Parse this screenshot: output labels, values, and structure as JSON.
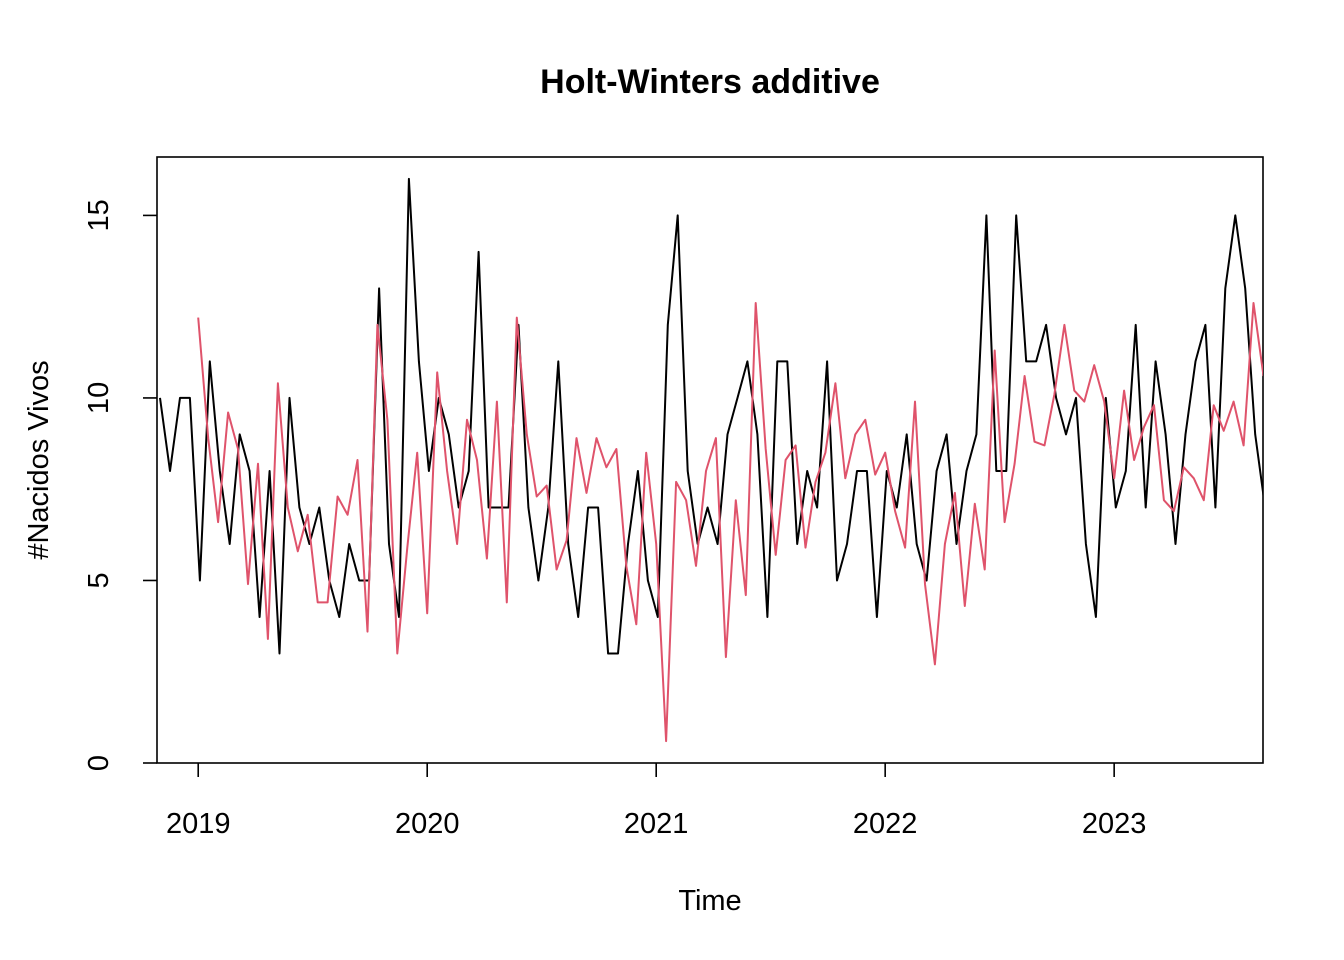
{
  "chart_data": {
    "type": "line",
    "title": "Holt-Winters additive",
    "xlabel": "Time",
    "ylabel": "#Nacidos Vivos",
    "xlim": [
      2018.82,
      2023.65
    ],
    "ylim": [
      0,
      16.6
    ],
    "x_ticks": [
      2019,
      2020,
      2021,
      2022,
      2023
    ],
    "x_tick_labels": [
      "2019",
      "2020",
      "2021",
      "2022",
      "2023"
    ],
    "y_ticks": [
      0,
      5,
      10,
      15
    ],
    "y_tick_labels": [
      "0",
      "5",
      "10",
      "15"
    ],
    "grid": false,
    "legend": "none",
    "series": [
      {
        "color": "#000000",
        "x_start": 2018.8333,
        "x_step": 0.043478,
        "values": [
          10,
          8,
          10,
          10,
          5,
          11,
          8,
          6,
          9,
          8,
          4,
          8,
          3,
          10,
          7,
          6,
          7,
          5,
          4,
          6,
          5,
          5,
          13,
          6,
          4,
          16,
          11,
          8,
          10,
          9,
          7,
          8,
          14,
          7,
          7,
          7,
          12,
          7,
          5,
          7,
          11,
          6,
          4,
          7,
          7,
          3,
          3,
          6,
          8,
          5,
          4,
          12,
          15,
          8,
          6,
          7,
          6,
          9,
          10,
          11,
          9,
          4,
          11,
          11,
          6,
          8,
          7,
          11,
          5,
          6,
          8,
          8,
          4,
          8,
          7,
          9,
          6,
          5,
          8,
          9,
          6,
          8,
          9,
          15,
          8,
          8,
          15,
          11,
          11,
          12,
          10,
          9,
          10,
          6,
          4,
          10,
          7,
          8,
          12,
          7,
          11,
          9,
          6,
          9,
          11,
          12,
          7,
          13,
          15,
          13,
          9,
          7
        ]
      },
      {
        "color": "#DF536B",
        "x_start": 2019.0,
        "x_step": 0.043478,
        "values": [
          12.2,
          8.9,
          6.6,
          9.6,
          8.6,
          4.9,
          8.2,
          3.4,
          10.4,
          7.0,
          5.8,
          6.8,
          4.4,
          4.4,
          7.3,
          6.8,
          8.3,
          3.6,
          12.0,
          9.4,
          3.0,
          5.9,
          8.5,
          4.1,
          10.7,
          8.0,
          6.0,
          9.4,
          8.3,
          5.6,
          9.9,
          4.4,
          12.2,
          9.0,
          7.3,
          7.6,
          5.3,
          6.1,
          8.9,
          7.4,
          8.9,
          8.1,
          8.6,
          5.4,
          3.8,
          8.5,
          6.0,
          0.6,
          7.7,
          7.2,
          5.4,
          8.0,
          8.9,
          2.9,
          7.2,
          4.6,
          12.6,
          8.6,
          5.7,
          8.3,
          8.7,
          5.9,
          7.7,
          8.5,
          10.4,
          7.8,
          9.0,
          9.4,
          7.9,
          8.5,
          6.9,
          5.9,
          9.9,
          4.9,
          2.7,
          6.0,
          7.4,
          4.3,
          7.1,
          5.3,
          11.3,
          6.6,
          8.2,
          10.6,
          8.8,
          8.7,
          10.1,
          12.0,
          10.2,
          9.9,
          10.9,
          9.9,
          7.8,
          10.2,
          8.3,
          9.2,
          9.8,
          7.2,
          6.9,
          8.1,
          7.8,
          7.2,
          9.8,
          9.1,
          9.9,
          8.7,
          12.6,
          10.6
        ]
      }
    ]
  }
}
